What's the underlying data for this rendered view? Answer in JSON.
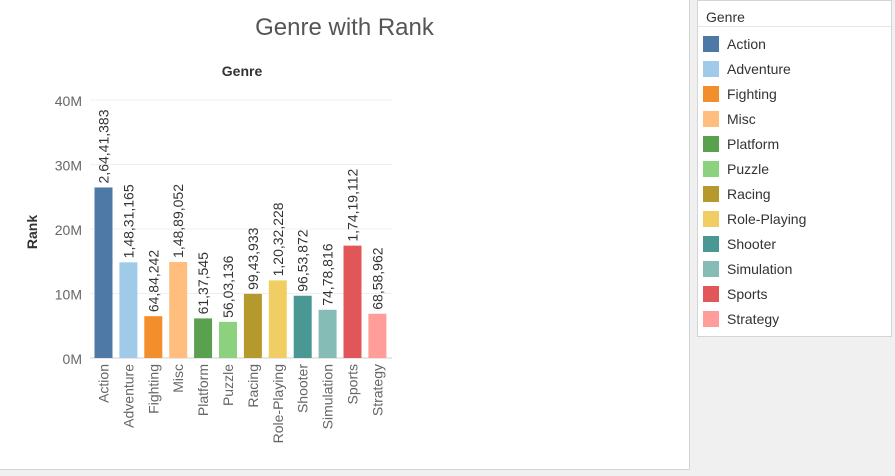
{
  "chart_data": {
    "type": "bar",
    "title": "Genre with Rank",
    "header": "Genre",
    "ylabel": "Rank",
    "xlabel": "",
    "ylim": [
      0,
      40000000
    ],
    "yticks": [
      {
        "value": 0,
        "label": "0M"
      },
      {
        "value": 10000000,
        "label": "10M"
      },
      {
        "value": 20000000,
        "label": "20M"
      },
      {
        "value": 30000000,
        "label": "30M"
      },
      {
        "value": 40000000,
        "label": "40M"
      }
    ],
    "grid": true,
    "legend_position": "right",
    "categories": [
      "Action",
      "Adventure",
      "Fighting",
      "Misc",
      "Platform",
      "Puzzle",
      "Racing",
      "Role-Playing",
      "Shooter",
      "Simulation",
      "Sports",
      "Strategy"
    ],
    "values": [
      26441383,
      14831165,
      6484242,
      14889052,
      6137545,
      5603136,
      9943933,
      12032228,
      9653872,
      7478816,
      17419112,
      6858962
    ],
    "value_labels": [
      "2,64,41,383",
      "1,48,31,165",
      "64,84,242",
      "1,48,89,052",
      "61,37,545",
      "56,03,136",
      "99,43,933",
      "1,20,32,228",
      "96,53,872",
      "74,78,816",
      "1,74,19,112",
      "68,58,962"
    ],
    "colors": [
      "#4e79a7",
      "#a0cbe8",
      "#f28e2b",
      "#ffbe7d",
      "#59a14f",
      "#8cd17d",
      "#b6992d",
      "#f1ce63",
      "#499894",
      "#86bcb6",
      "#e15759",
      "#ff9d9a"
    ]
  },
  "legend": {
    "title": "Genre"
  }
}
